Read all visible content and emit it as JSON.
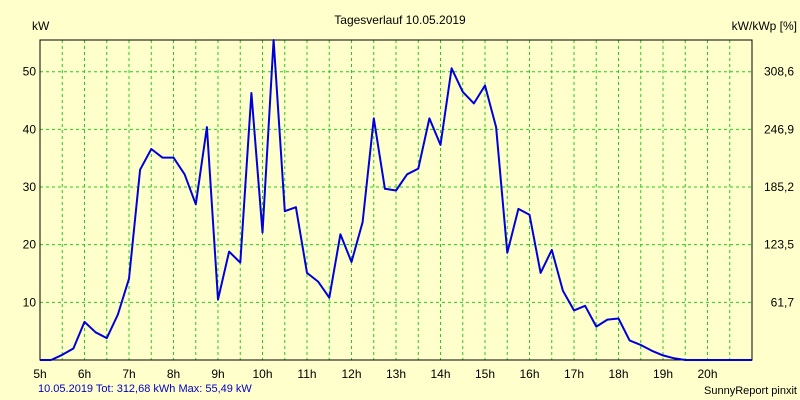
{
  "chart_data": {
    "type": "line",
    "title": "Tagesverlauf 10.05.2019",
    "ylabel_left": "kW",
    "ylabel_right": "kW/kWp [%]",
    "x_tick_labels": [
      "5h",
      "6h",
      "7h",
      "8h",
      "9h",
      "10h",
      "11h",
      "12h",
      "13h",
      "14h",
      "15h",
      "16h",
      "17h",
      "18h",
      "19h",
      "20h"
    ],
    "y_tick_labels_left": [
      "10",
      "20",
      "30",
      "40",
      "50"
    ],
    "y_tick_values_left": [
      10,
      20,
      30,
      40,
      50
    ],
    "y_tick_labels_right": [
      "61,7",
      "123,5",
      "185,2",
      "246,9",
      "308,6"
    ],
    "xlim": [
      5.0,
      21.0
    ],
    "ylim": [
      0,
      55.5
    ],
    "grid": true,
    "colors": {
      "line": "#0000DD",
      "grid": "#22CC22",
      "background": "#FFFFCC",
      "footer_text": "#0000CC"
    },
    "series": [
      {
        "x": [
          5.0,
          5.25,
          5.5,
          5.75,
          6.0,
          6.25,
          6.5,
          6.75,
          7.0,
          7.25,
          7.5,
          7.75,
          8.0,
          8.25,
          8.5,
          8.75,
          9.0,
          9.25,
          9.5,
          9.75,
          10.0,
          10.25,
          10.5,
          10.75,
          11.0,
          11.25,
          11.5,
          11.75,
          12.0,
          12.25,
          12.5,
          12.75,
          13.0,
          13.25,
          13.5,
          13.75,
          14.0,
          14.25,
          14.5,
          14.75,
          15.0,
          15.25,
          15.5,
          15.75,
          16.0,
          16.25,
          16.5,
          16.75,
          17.0,
          17.25,
          17.5,
          17.75,
          18.0,
          18.25,
          18.5,
          18.75,
          19.0,
          19.25,
          19.5,
          19.75,
          20.0,
          20.25,
          20.5,
          20.75,
          21.0
        ],
        "values": [
          0,
          0,
          0.9,
          2.0,
          6.6,
          4.8,
          3.8,
          7.9,
          14.1,
          33.0,
          36.6,
          35.1,
          35.1,
          32.2,
          27.0,
          40.4,
          10.5,
          18.8,
          16.9,
          46.3,
          22.1,
          55.5,
          25.8,
          26.5,
          15.1,
          13.6,
          10.8,
          21.8,
          17.0,
          23.9,
          41.9,
          29.7,
          29.4,
          32.2,
          33.2,
          41.9,
          37.3,
          50.6,
          46.5,
          44.5,
          47.6,
          40.4,
          18.6,
          26.2,
          25.2,
          15.1,
          19.1,
          12.0,
          8.6,
          9.4,
          5.8,
          7.0,
          7.2,
          3.4,
          2.6,
          1.6,
          0.8,
          0.3,
          0,
          0,
          0,
          0,
          0,
          0,
          0
        ]
      }
    ]
  },
  "footer": {
    "left": "10.05.2019 Tot: 312,68 kWh Max: 55,49 kW",
    "right": "SunnyReport pinxit"
  }
}
